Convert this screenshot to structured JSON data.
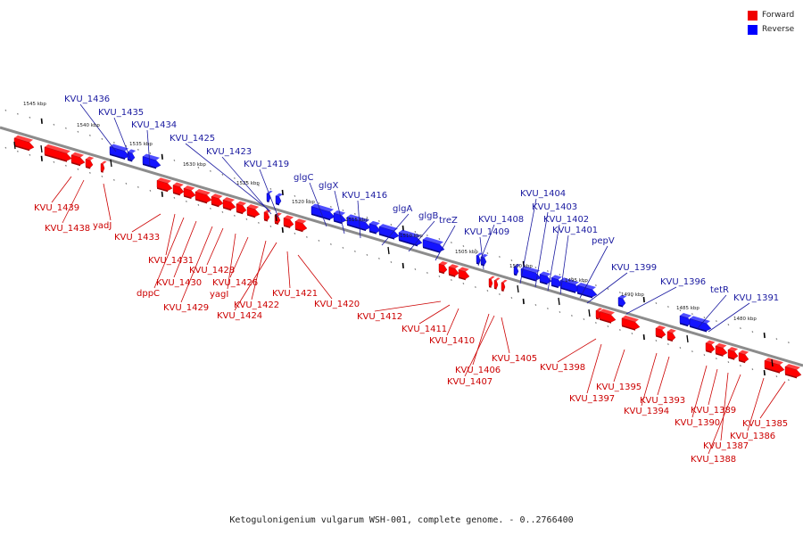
{
  "legend": [
    {
      "label": "Forward",
      "color": "#f00000"
    },
    {
      "label": "Reverse",
      "color": "#0000ff"
    }
  ],
  "caption": "Ketogulonigenium vulgarum WSH-001, complete genome. - 0..2766400",
  "colors": {
    "forward": "#ff0000",
    "reverse": "#1414ff",
    "forward_label": "#cc0000",
    "reverse_label": "#1a1aa0",
    "backbone": "#8c8c8c"
  },
  "ticks": [
    "1545 kbp",
    "1540 kbp",
    "1535 kbp",
    "1530 kbp",
    "1525 kbp",
    "1520 kbp",
    "1515 kbp",
    "1510 kbp",
    "1505 kbp",
    "1500 kbp",
    "1495 kbp",
    "1490 kbp",
    "1485 kbp",
    "1480 kbp"
  ],
  "reverse_genes": [
    "KVU_1436",
    "KVU_1435",
    "KVU_1434",
    "KVU_1425",
    "KVU_1423",
    "KVU_1419",
    "glgC",
    "glgX",
    "KVU_1416",
    "glgA",
    "glgB",
    "treZ",
    "KVU_1408",
    "KVU_1409",
    "KVU_1404",
    "KVU_1403",
    "KVU_1402",
    "KVU_1401",
    "pepV",
    "KVU_1399",
    "KVU_1396",
    "tetR",
    "KVU_1391"
  ],
  "forward_genes": [
    "KVU_1439",
    "KVU_1438",
    "yadJ",
    "KVU_1433",
    "KVU_1431",
    "dppC",
    "KVU_1430",
    "KVU_1429",
    "KVU_1428",
    "yagI",
    "KVU_1426",
    "KVU_1422",
    "KVU_1424",
    "KVU_1421",
    "KVU_1420",
    "KVU_1412",
    "KVU_1411",
    "KVU_1410",
    "KVU_1406",
    "KVU_1407",
    "KVU_1405",
    "KVU_1398",
    "KVU_1397",
    "KVU_1395",
    "KVU_1394",
    "KVU_1393",
    "KVU_1390",
    "KVU_1389",
    "KVU_1387",
    "KVU_1388",
    "KVU_1386",
    "KVU_1385"
  ]
}
